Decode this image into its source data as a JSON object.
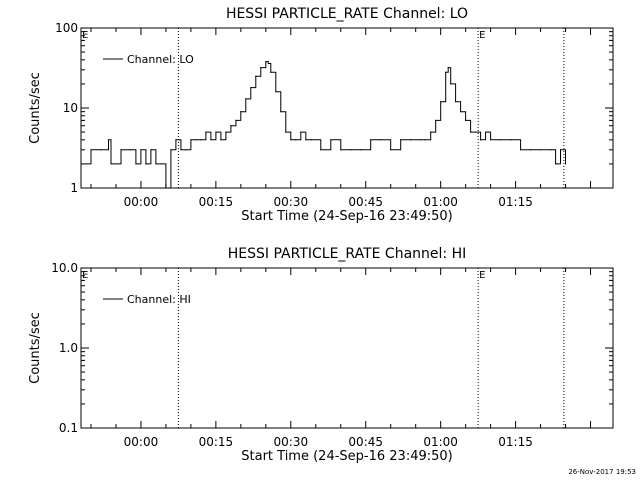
{
  "chart_data": [
    {
      "type": "line",
      "title": "HESSI PARTICLE_RATE Channel: LO",
      "xlabel": "Start Time (24-Sep-16 23:49:50)",
      "ylabel": "Counts/sec",
      "yscale": "log",
      "ylim": [
        1,
        100
      ],
      "y_ticks": [
        "1",
        "10",
        "100"
      ],
      "x_ticks": [
        "00:00",
        "00:15",
        "00:30",
        "00:45",
        "01:00",
        "01:15"
      ],
      "legend": {
        "label": "Channel: LO",
        "placement": "top-left"
      },
      "vertical_markers": [
        {
          "time": "00:07:30",
          "label": ""
        },
        {
          "time": "01:07:30",
          "label": "E"
        },
        {
          "time": "01:24:40",
          "label": ""
        }
      ],
      "corner_label": "E",
      "series": [
        {
          "name": "Channel: LO",
          "x": [
            "-00:11:10",
            "-00:10:00",
            "-00:08:00",
            "-00:06:30",
            "-00:06:00",
            "-00:04:00",
            "-00:02:00",
            "-00:01:00",
            "00:00:00",
            "00:01:00",
            "00:02:00",
            "00:03:00",
            "00:04:00",
            "00:05:00",
            "00:05:30",
            "00:06:00",
            "00:07:00",
            "00:08:00",
            "00:09:00",
            "00:10:00",
            "00:11:00",
            "00:12:00",
            "00:13:00",
            "00:14:00",
            "00:15:00",
            "00:16:00",
            "00:17:00",
            "00:18:00",
            "00:19:00",
            "00:20:00",
            "00:21:00",
            "00:22:00",
            "00:23:00",
            "00:24:00",
            "00:25:00",
            "00:25:30",
            "00:26:00",
            "00:27:00",
            "00:28:00",
            "00:29:00",
            "00:30:00",
            "00:31:00",
            "00:32:00",
            "00:33:00",
            "00:34:00",
            "00:36:00",
            "00:38:00",
            "00:40:00",
            "00:42:00",
            "00:44:00",
            "00:46:00",
            "00:48:00",
            "00:50:00",
            "00:52:00",
            "00:54:00",
            "00:56:00",
            "00:57:00",
            "00:58:00",
            "00:59:00",
            "01:00:00",
            "01:01:00",
            "01:01:30",
            "01:02:00",
            "01:03:00",
            "01:04:00",
            "01:05:00",
            "01:06:00",
            "01:07:00",
            "01:08:00",
            "01:09:00",
            "01:10:00",
            "01:12:00",
            "01:14:00",
            "01:16:00",
            "01:18:00",
            "01:20:00",
            "01:22:00",
            "01:23:00",
            "01:24:00",
            "01:25:00"
          ],
          "values": [
            2,
            3,
            3,
            4,
            2,
            3,
            3,
            2,
            3,
            2,
            3,
            2,
            2,
            1,
            1,
            3,
            4,
            3,
            3,
            4,
            4,
            4,
            5,
            4,
            5,
            4,
            5,
            6,
            7,
            9,
            13,
            18,
            25,
            32,
            38,
            36,
            28,
            16,
            9,
            5,
            4,
            4,
            5,
            4,
            4,
            3,
            4,
            3,
            3,
            3,
            4,
            4,
            3,
            4,
            4,
            4,
            4,
            5,
            7,
            12,
            28,
            32,
            20,
            12,
            9,
            7,
            5,
            5,
            4,
            5,
            4,
            4,
            4,
            3,
            3,
            3,
            3,
            2,
            3,
            2
          ]
        }
      ]
    },
    {
      "type": "line",
      "title": "HESSI PARTICLE_RATE Channel: HI",
      "xlabel": "Start Time (24-Sep-16 23:49:50)",
      "ylabel": "Counts/sec",
      "yscale": "log",
      "ylim": [
        0.1,
        10
      ],
      "y_ticks": [
        "0.1",
        "1.0",
        "10.0"
      ],
      "x_ticks": [
        "00:00",
        "00:15",
        "00:30",
        "00:45",
        "01:00",
        "01:15"
      ],
      "legend": {
        "label": "Channel: HI",
        "placement": "top-left"
      },
      "vertical_markers": [
        {
          "time": "00:07:30",
          "label": ""
        },
        {
          "time": "01:07:30",
          "label": "E"
        },
        {
          "time": "01:24:40",
          "label": ""
        }
      ],
      "corner_label": "E",
      "series": [
        {
          "name": "Channel: HI",
          "x": [],
          "values": []
        }
      ]
    }
  ],
  "footer": {
    "timestamp": "26-Nov-2017 19:53"
  }
}
